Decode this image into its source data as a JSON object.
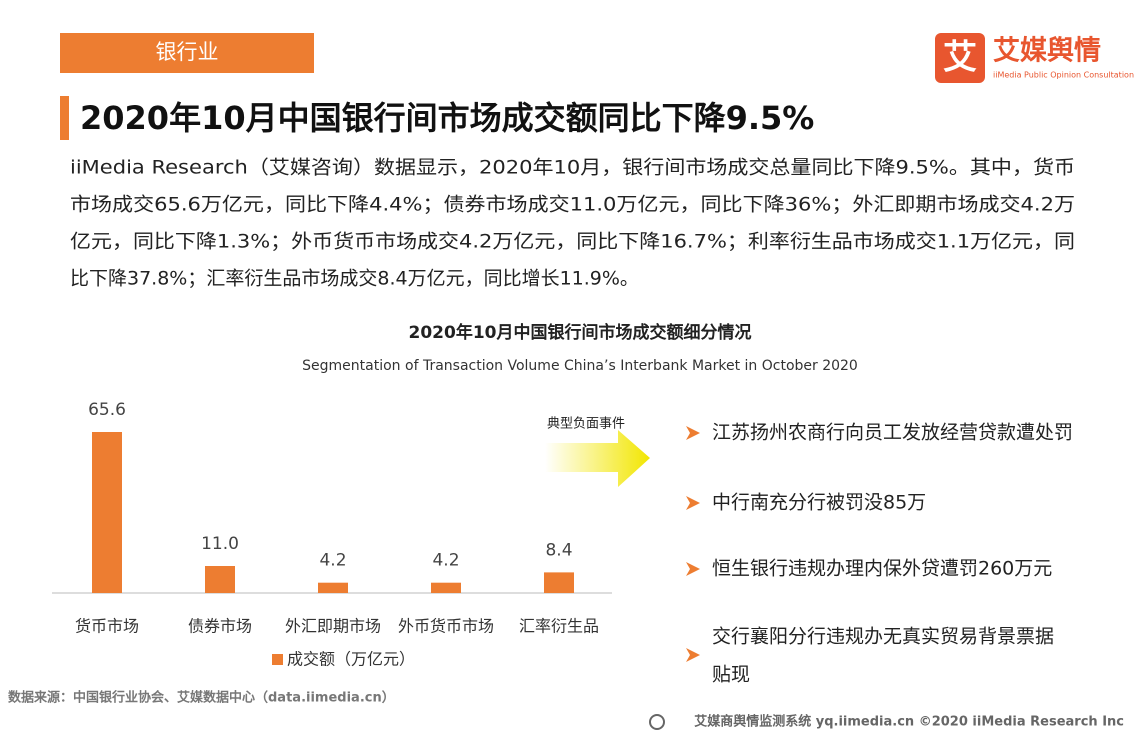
{
  "header": {
    "tag": "银行业",
    "title": "2020年10月中国银行间市场成交额同比下降9.5%",
    "logo_name": "艾媒舆情",
    "logo_sub": "iiMedia Public Opinion Consultation",
    "logo_mark": "艾"
  },
  "body": {
    "lines": [
      "iiMedia Research（艾媒咨询）数据显示，2020年10月，银行间市场成交总量同比下降9.5%。其中，货币",
      "市场成交65.6万亿元，同比下降4.4%；债券市场成交11.0万亿元，同比下降36%；外汇即期市场成交4.2万",
      "亿元，同比下降1.3%；外币货币市场成交4.2万亿元，同比下降16.7%；利率衍生品市场成交1.1万亿元，同",
      "比下降37.8%；汇率衍生品市场成交8.4万亿元，同比增长11.9%。"
    ]
  },
  "chart_data": {
    "type": "bar",
    "title": "2020年10月中国银行间市场成交额细分情况",
    "subtitle": "Segmentation of Transaction Volume China’s Interbank Market in October 2020",
    "categories": [
      "货币市场",
      "债券市场",
      "外汇即期市场",
      "外币货币市场",
      "汇率衍生品"
    ],
    "series": [
      {
        "name": "成交额（万亿元）",
        "color": "#ed7d31",
        "values": [
          65.6,
          11.0,
          4.2,
          4.2,
          8.4
        ],
        "value_labels": [
          "65.6",
          "11.0",
          "4.2",
          "4.2",
          "8.4"
        ]
      }
    ]
  },
  "events": {
    "label": "典型负面事件",
    "items": [
      "江苏扬州农商行向员工发放经营贷款遭处罚",
      "中行南充分行被罚没85万",
      "恒生银行违规办理内保外贷遭罚260万元",
      [
        "交行襄阳分行违规办无真实贸易背景票据",
        "贴现"
      ]
    ]
  },
  "footer": {
    "source": "数据来源：中国银行业协会、艾媒数据中心（data.iimedia.cn）",
    "credit": "艾媒商舆情监测系统 yq.iimedia.cn  ©2020  iiMedia Research  Inc"
  }
}
